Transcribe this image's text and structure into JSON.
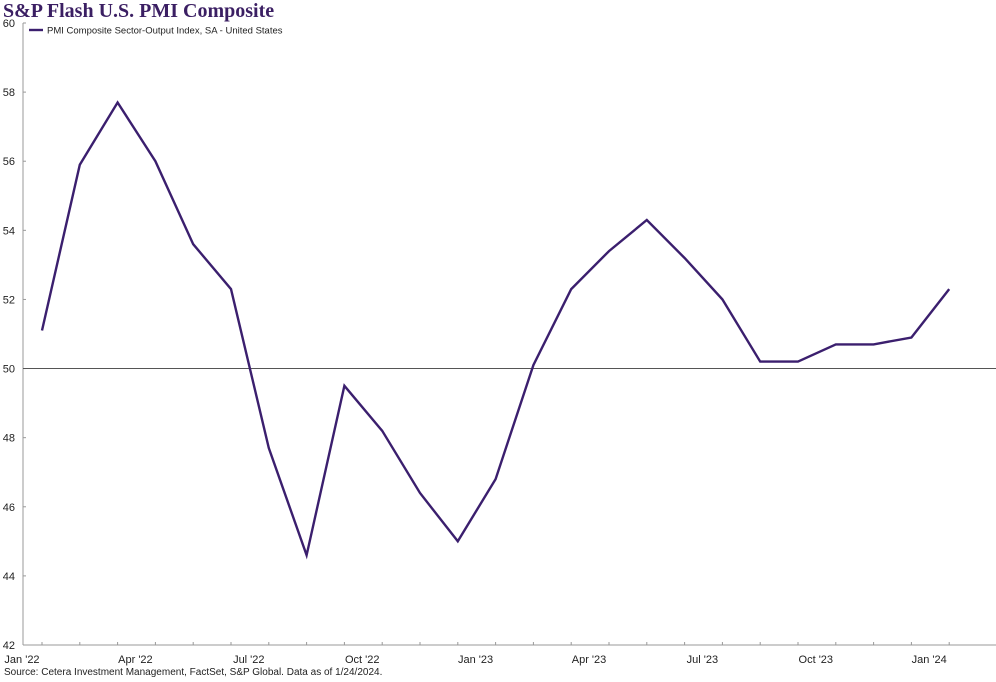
{
  "chart_data": {
    "type": "line",
    "title": "S&P Flash U.S. PMI Composite",
    "xlabel": "",
    "ylabel": "",
    "ylim": [
      42,
      60
    ],
    "yticks": [
      42,
      44,
      46,
      48,
      50,
      52,
      54,
      56,
      58,
      60
    ],
    "x_tick_labels": [
      "Jan '22",
      "Apr '22",
      "Jul '22",
      "Oct '22",
      "Jan '23",
      "Apr '23",
      "Jul '23",
      "Oct '23",
      "Jan '24"
    ],
    "x": [
      "2022-01",
      "2022-02",
      "2022-03",
      "2022-04",
      "2022-05",
      "2022-06",
      "2022-07",
      "2022-08",
      "2022-09",
      "2022-10",
      "2022-11",
      "2022-12",
      "2023-01",
      "2023-02",
      "2023-03",
      "2023-04",
      "2023-05",
      "2023-06",
      "2023-07",
      "2023-08",
      "2023-09",
      "2023-10",
      "2023-11",
      "2023-12",
      "2024-01"
    ],
    "series": [
      {
        "name": "PMI Composite Sector-Output Index, SA - United States",
        "color": "#3b1f6e",
        "values": [
          51.1,
          55.9,
          57.7,
          56.0,
          53.6,
          52.3,
          47.7,
          44.6,
          49.5,
          48.2,
          46.4,
          45.0,
          46.8,
          50.1,
          52.3,
          53.4,
          54.3,
          53.2,
          52.0,
          50.2,
          50.2,
          50.7,
          50.7,
          50.9,
          52.3
        ]
      }
    ],
    "reference_line": 50,
    "grid": false,
    "legend_position": "top-left",
    "source": "Source: Cetera Investment Management, FactSet, S&P Global. Data as of 1/24/2024."
  }
}
